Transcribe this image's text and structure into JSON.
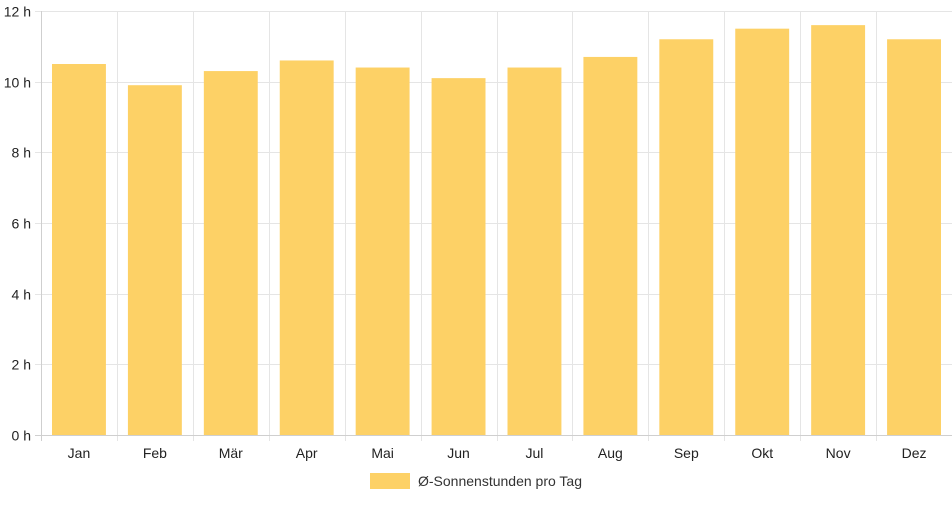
{
  "colors": {
    "bar": "#fdd166",
    "grid": "#e5e5e5",
    "axis": "#cfcfcf"
  },
  "chart_data": {
    "type": "bar",
    "title": "",
    "xlabel": "",
    "ylabel": "",
    "categories": [
      "Jan",
      "Feb",
      "Mär",
      "Apr",
      "Mai",
      "Jun",
      "Jul",
      "Aug",
      "Sep",
      "Okt",
      "Nov",
      "Dez"
    ],
    "series": [
      {
        "name": "Ø-Sonnenstunden pro Tag",
        "values": [
          10.5,
          9.9,
          10.3,
          10.6,
          10.4,
          10.1,
          10.4,
          10.7,
          11.2,
          11.5,
          11.6,
          11.2
        ]
      }
    ],
    "ylim": [
      0,
      12
    ],
    "yticks": [
      0,
      2,
      4,
      6,
      8,
      10,
      12
    ],
    "ytick_labels": [
      "0 h",
      "2 h",
      "4 h",
      "6 h",
      "8 h",
      "10 h",
      "12 h"
    ],
    "grid": true,
    "legend_position": "bottom-center"
  }
}
